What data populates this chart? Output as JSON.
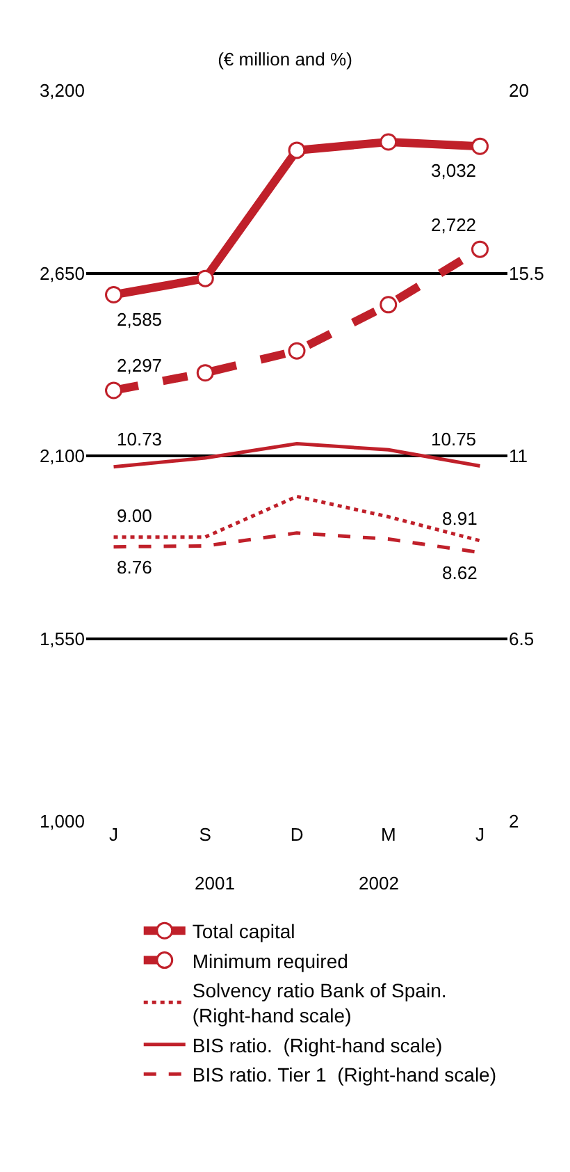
{
  "chart_data": {
    "type": "line",
    "subtitle": "(€ million and %)",
    "categories": [
      "J",
      "S",
      "D",
      "M",
      "J"
    ],
    "series": [
      {
        "name": "Total capital",
        "color": "#c0202a",
        "values": [
          2585,
          2634,
          3020,
          3045,
          3032
        ],
        "value_labels": [
          "2,585",
          null,
          null,
          null,
          "3,032"
        ],
        "line_style": "solid",
        "marker": "circle"
      },
      {
        "name": "Minimum required",
        "color": "#c0202a",
        "values": [
          2297,
          2350,
          2416,
          2555,
          2722
        ],
        "value_labels": [
          "2,297",
          null,
          null,
          null,
          "2,722"
        ],
        "line_style": "dashed",
        "marker": "circle"
      },
      {
        "name": "Solvency ratio Bank of Spain.\n(Right-hand scale)",
        "color": "#c0202a",
        "axis": "y2",
        "values": [
          9.0,
          9.0,
          10.0,
          9.5,
          8.91
        ],
        "value_labels": [
          "9.00",
          null,
          null,
          null,
          "8.91"
        ],
        "line_style": "dotted",
        "marker": "none"
      },
      {
        "name": "BIS ratio.  (Right-hand scale)",
        "color": "#c0202a",
        "axis": "y2",
        "values": [
          10.73,
          10.95,
          11.3,
          11.15,
          10.75
        ],
        "value_labels": [
          "10.73",
          null,
          null,
          null,
          "10.75"
        ],
        "line_style": "solid",
        "marker": "none"
      },
      {
        "name": "BIS ratio. Tier 1  (Right-hand scale)",
        "color": "#c0202a",
        "axis": "y2",
        "values": [
          8.76,
          8.78,
          9.1,
          8.95,
          8.62
        ],
        "value_labels": [
          "8.76",
          null,
          null,
          null,
          "8.62"
        ],
        "line_style": "dashed",
        "marker": "none"
      }
    ],
    "ylim": [
      1000,
      3200
    ],
    "yticks": [
      {
        "value": 1000,
        "label": "1,000"
      },
      {
        "value": 1550,
        "label": "1,550"
      },
      {
        "value": 2100,
        "label": "2,100"
      },
      {
        "value": 2650,
        "label": "2,650"
      },
      {
        "value": 3200,
        "label": "3,200"
      }
    ],
    "y2lim": [
      2,
      20
    ],
    "y2ticks": [
      2,
      6.5,
      11,
      15.5,
      20
    ],
    "annotations": [
      "2001",
      "2002"
    ],
    "grid": "y",
    "legend": "bottom"
  }
}
